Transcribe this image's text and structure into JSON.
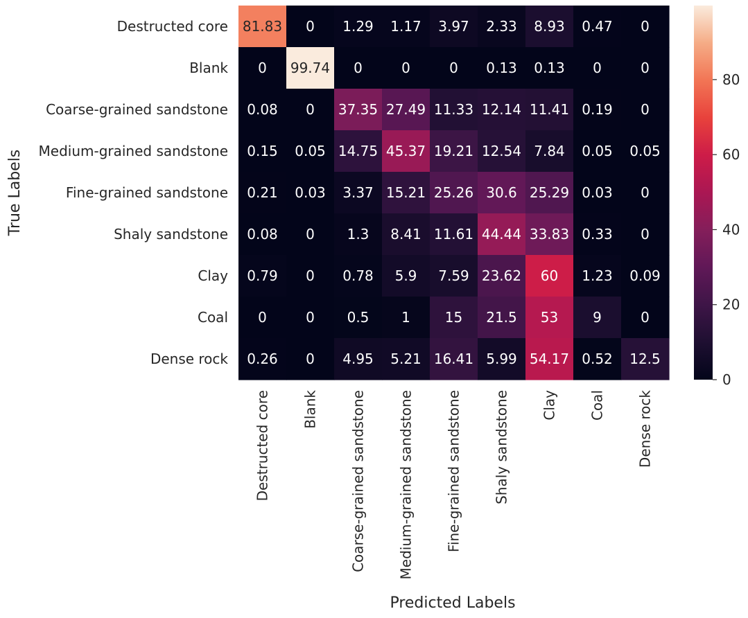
{
  "chart_data": {
    "type": "heatmap",
    "title": "",
    "xlabel": "Predicted Labels",
    "ylabel": "True Labels",
    "categories": [
      "Destructed core",
      "Blank",
      "Coarse-grained sandstone",
      "Medium-grained sandstone",
      "Fine-grained sandstone",
      "Shaly sandstone",
      "Clay",
      "Coal",
      "Dense rock"
    ],
    "values": [
      [
        81.83,
        0,
        1.29,
        1.17,
        3.97,
        2.33,
        8.93,
        0.47,
        0
      ],
      [
        0,
        99.74,
        0,
        0,
        0,
        0.13,
        0.13,
        0,
        0
      ],
      [
        0.08,
        0,
        37.35,
        27.49,
        11.33,
        12.14,
        11.41,
        0.19,
        0
      ],
      [
        0.15,
        0.05,
        14.75,
        45.37,
        19.21,
        12.54,
        7.84,
        0.05,
        0.05
      ],
      [
        0.21,
        0.03,
        3.37,
        15.21,
        25.26,
        30.6,
        25.29,
        0.03,
        0
      ],
      [
        0.08,
        0,
        1.3,
        8.41,
        11.61,
        44.44,
        33.83,
        0.33,
        0
      ],
      [
        0.79,
        0,
        0.78,
        5.9,
        7.59,
        23.62,
        60,
        1.23,
        0.09
      ],
      [
        0,
        0,
        0.5,
        1,
        15,
        21.5,
        53,
        9,
        0
      ],
      [
        0.26,
        0,
        4.95,
        5.21,
        16.41,
        5.99,
        54.17,
        0.52,
        12.5
      ]
    ],
    "colorbar": {
      "min": 0,
      "max": 99.74,
      "ticks": [
        0,
        20,
        40,
        60,
        80
      ]
    },
    "colormap": "rocket"
  }
}
